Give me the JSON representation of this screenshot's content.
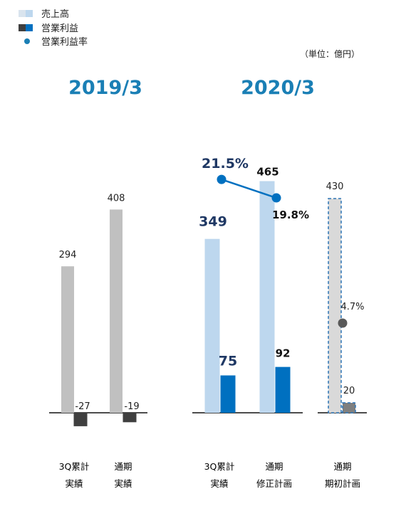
{
  "legend": {
    "items": [
      {
        "label": "売上高",
        "type": "bar-light"
      },
      {
        "label": "営業利益",
        "type": "bar-dark"
      },
      {
        "label": "営業利益率",
        "type": "dot"
      }
    ]
  },
  "unit_note": "（単位：億円）",
  "colors": {
    "period_title": "#1a7fb5",
    "gray_bar": "#c0c0c0",
    "dark_bar": "#3f3f3f",
    "light_blue_bar": "#bdd7ee",
    "blue_bar": "#0070c0",
    "navy_text": "#1f3864",
    "margin_line": "#0070c0",
    "plan_bar": "#d9d9d9",
    "plan_border": "#2e75b6",
    "plan_op_bar": "#7f7f7f",
    "plan_dot": "#595959"
  },
  "chart_data": {
    "type": "bar",
    "title": "",
    "groups": [
      {
        "title": "2019/3",
        "categories": [
          {
            "label_line1": "3Q累計",
            "label_line2": "実績",
            "sales": 294,
            "operating_profit": -27
          },
          {
            "label_line1": "通期",
            "label_line2": "実績",
            "sales": 408,
            "operating_profit": -19
          }
        ]
      },
      {
        "title": "2020/3",
        "categories": [
          {
            "label_line1": "3Q累計",
            "label_line2": "実績",
            "sales": 349,
            "operating_profit": 75,
            "operating_margin_pct": 21.5,
            "operating_margin_label": "21.5%"
          },
          {
            "label_line1": "通期",
            "label_line2": "修正計画",
            "sales": 465,
            "operating_profit": 92,
            "operating_margin_pct": 19.8,
            "operating_margin_label": "19.8%"
          }
        ]
      },
      {
        "title": "",
        "categories": [
          {
            "label_line1": "通期",
            "label_line2": "期初計画",
            "sales": 430,
            "operating_profit": 20,
            "operating_margin_pct": 4.7,
            "operating_margin_label": "4.7%"
          }
        ]
      }
    ],
    "series": [
      {
        "name": "売上高"
      },
      {
        "name": "営業利益"
      },
      {
        "name": "営業利益率"
      }
    ],
    "grid": false,
    "legend_position": "top-left"
  }
}
